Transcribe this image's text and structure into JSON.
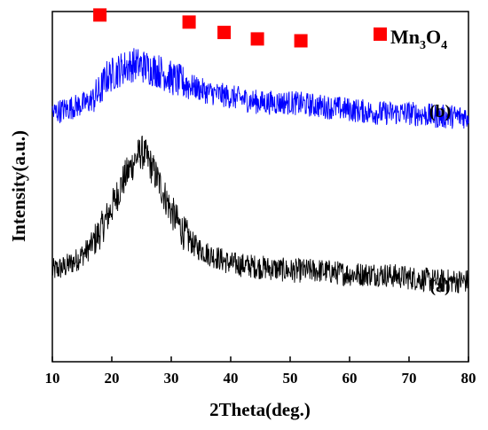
{
  "chart_data": {
    "type": "line",
    "xlabel": "2Theta(deg.)",
    "ylabel": "Intensity(a.u.)",
    "xlim": [
      10,
      80
    ],
    "x_ticks": [
      10,
      20,
      30,
      40,
      50,
      60,
      70,
      80
    ],
    "y_ticks": [],
    "grid": false,
    "series": [
      {
        "name": "(a)",
        "color": "#000000",
        "x": [
          10,
          12,
          14,
          16,
          18,
          20,
          22,
          24,
          25,
          26,
          28,
          30,
          32,
          34,
          36,
          40,
          45,
          50,
          55,
          60,
          65,
          70,
          75,
          80
        ],
        "y": [
          0.26,
          0.27,
          0.29,
          0.32,
          0.37,
          0.44,
          0.52,
          0.58,
          0.6,
          0.58,
          0.51,
          0.43,
          0.37,
          0.33,
          0.31,
          0.28,
          0.27,
          0.26,
          0.26,
          0.25,
          0.25,
          0.24,
          0.23,
          0.23
        ]
      },
      {
        "name": "(b)",
        "color": "#0000ff",
        "x": [
          10,
          12,
          14,
          16,
          18,
          19,
          20,
          22,
          24,
          26,
          28,
          30,
          33,
          36,
          39,
          42,
          45,
          50,
          55,
          60,
          65,
          70,
          75,
          80
        ],
        "y": [
          0.71,
          0.72,
          0.73,
          0.74,
          0.77,
          0.81,
          0.82,
          0.84,
          0.85,
          0.84,
          0.83,
          0.81,
          0.79,
          0.77,
          0.76,
          0.75,
          0.74,
          0.74,
          0.73,
          0.72,
          0.71,
          0.71,
          0.7,
          0.7
        ]
      }
    ],
    "markers": {
      "legend_label": "Mn3O4",
      "color": "#ff0000",
      "positions_2theta": [
        18.0,
        33.0,
        38.9,
        44.5,
        51.8
      ]
    }
  },
  "labels": {
    "series_a": "(a)",
    "series_b": "(b)",
    "legend_prefix": "Mn",
    "legend_sub1": "3",
    "legend_mid": "O",
    "legend_sub2": "4"
  }
}
